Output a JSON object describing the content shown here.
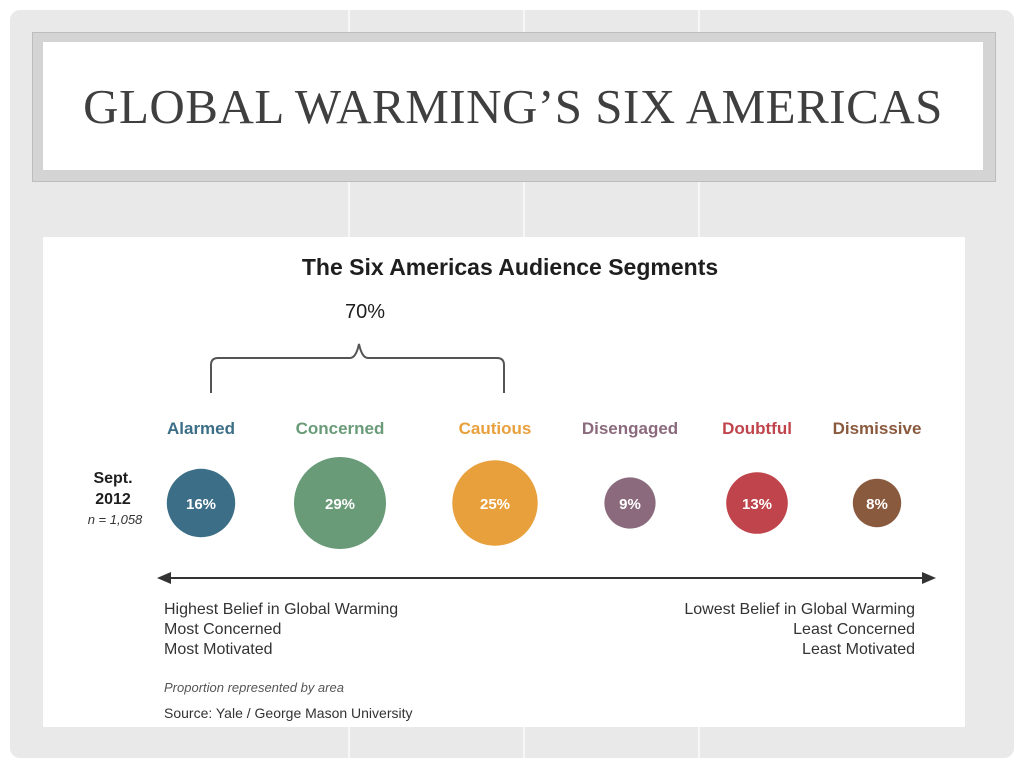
{
  "slide": {
    "title": "GLOBAL WARMING’S SIX AMERICAS"
  },
  "chart_data": {
    "type": "bubble",
    "title": "The Six Americas Audience Segments",
    "grouping": {
      "label": "70%",
      "covers": [
        "Alarmed",
        "Concerned",
        "Cautious"
      ]
    },
    "row_label": {
      "period": [
        "Sept.",
        "2012"
      ],
      "sample": "n = 1,058"
    },
    "segments": [
      {
        "name": "Alarmed",
        "value": 16,
        "label": "16%",
        "color": "#3c6e87"
      },
      {
        "name": "Concerned",
        "value": 29,
        "label": "29%",
        "color": "#6a9b78"
      },
      {
        "name": "Cautious",
        "value": 25,
        "label": "25%",
        "color": "#e8a03d"
      },
      {
        "name": "Disengaged",
        "value": 9,
        "label": "9%",
        "color": "#8a6a7c"
      },
      {
        "name": "Doubtful",
        "value": 13,
        "label": "13%",
        "color": "#c0444b"
      },
      {
        "name": "Dismissive",
        "value": 8,
        "label": "8%",
        "color": "#8a5a3e"
      }
    ],
    "axis": {
      "left": [
        "Highest Belief in Global Warming",
        "Most Concerned",
        "Most Motivated"
      ],
      "right": [
        "Lowest Belief in Global Warming",
        "Least Concerned",
        "Least Motivated"
      ]
    },
    "note": "Proportion represented by area",
    "source": "Source: Yale / George Mason University"
  }
}
